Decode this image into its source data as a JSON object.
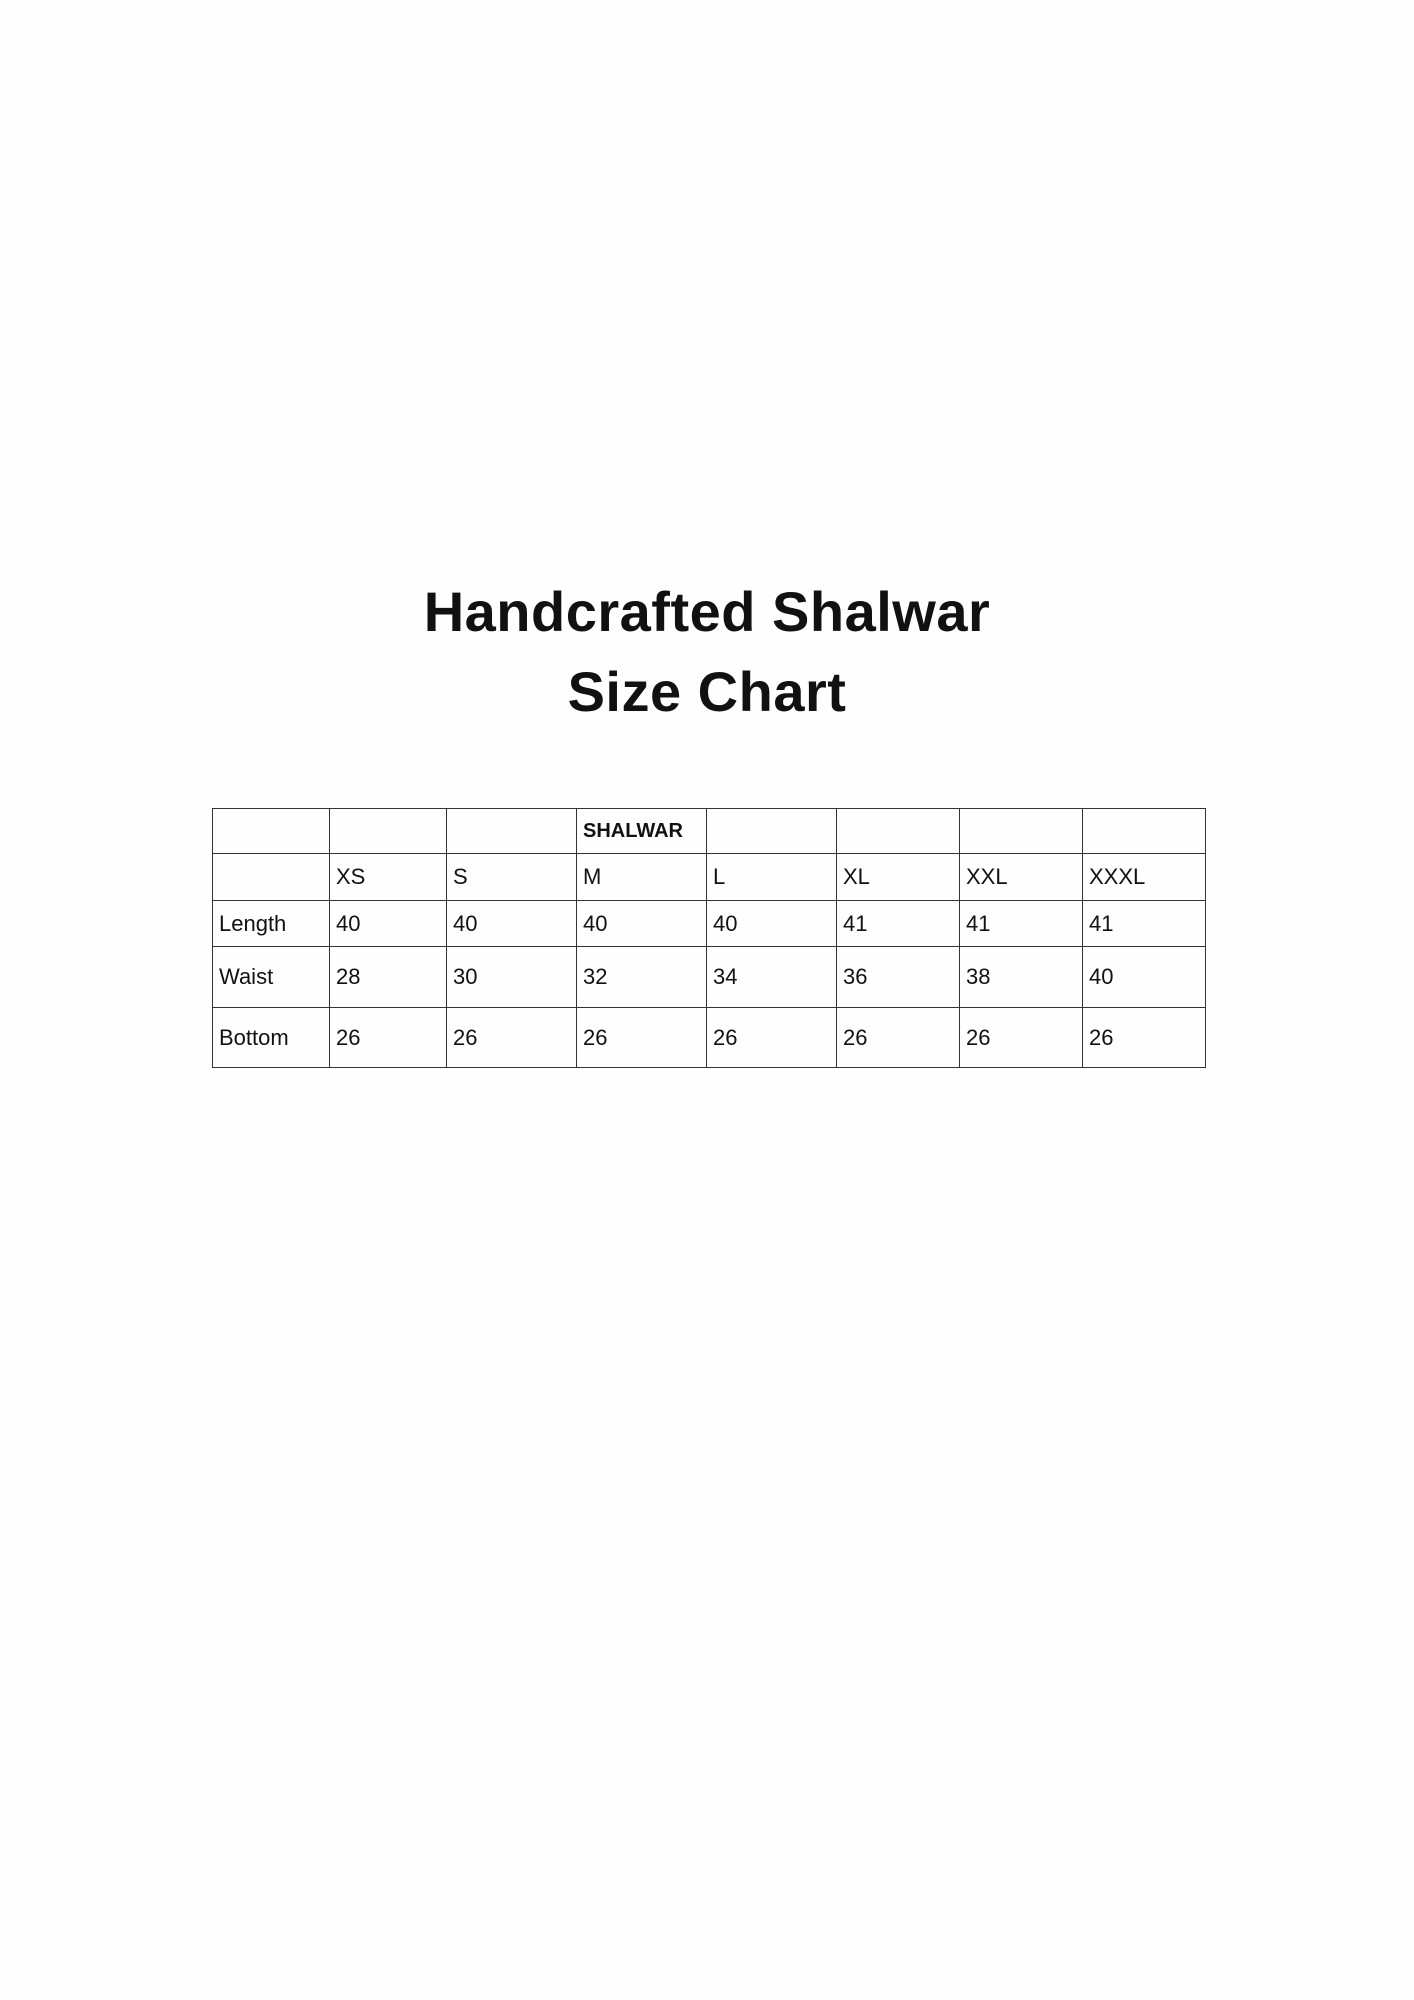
{
  "title": {
    "line1": "Handcrafted Shalwar",
    "line2": "Size Chart"
  },
  "table": {
    "group_header": "SHALWAR",
    "sizes": [
      "XS",
      "S",
      "M",
      "L",
      "XL",
      "XXL",
      "XXXL"
    ],
    "rows": [
      {
        "label": "Length",
        "values": [
          "40",
          "40",
          "40",
          "40",
          "41",
          "41",
          "41"
        ]
      },
      {
        "label": "Waist",
        "values": [
          "28",
          "30",
          "32",
          "34",
          "36",
          "38",
          "40"
        ]
      },
      {
        "label": "Bottom",
        "values": [
          "26",
          "26",
          "26",
          "26",
          "26",
          "26",
          "26"
        ]
      }
    ]
  }
}
